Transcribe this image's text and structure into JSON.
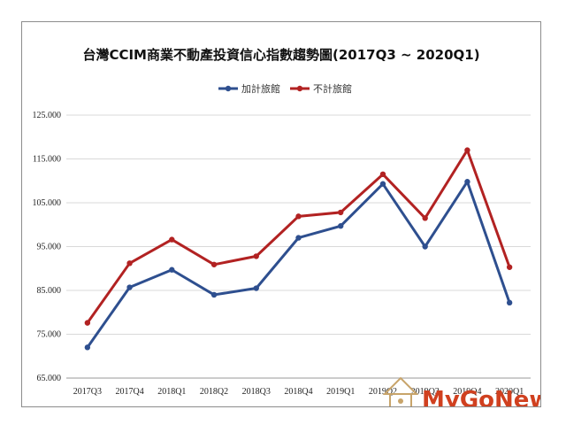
{
  "chart_data": {
    "type": "line",
    "title": "台灣CCIM商業不動產投資信心指數趨勢圖(2017Q3 ~ 2020Q1)",
    "categories": [
      "2017Q3",
      "2017Q4",
      "2018Q1",
      "2018Q2",
      "2018Q3",
      "2018Q4",
      "2019Q1",
      "2019Q2",
      "2019Q3",
      "2019Q4",
      "2020Q1"
    ],
    "series": [
      {
        "name": "加計旅館",
        "color": "#2e4f8f",
        "values": [
          72.0,
          85.7,
          89.7,
          84.0,
          85.5,
          97.0,
          99.7,
          109.3,
          95.0,
          109.8,
          82.2
        ]
      },
      {
        "name": "不計旅館",
        "color": "#b22222",
        "values": [
          77.6,
          91.2,
          96.6,
          90.9,
          92.8,
          101.9,
          102.8,
          111.5,
          101.5,
          117.0,
          90.3
        ]
      }
    ],
    "y_ticks": [
      "65.000",
      "75.000",
      "85.000",
      "95.000",
      "105.000",
      "115.000",
      "125.000"
    ],
    "ylim": [
      65,
      125
    ],
    "grid": "horizontal",
    "legend": "top-center"
  },
  "watermark": {
    "text": "MyGoNews",
    "color": "#d0401f"
  }
}
